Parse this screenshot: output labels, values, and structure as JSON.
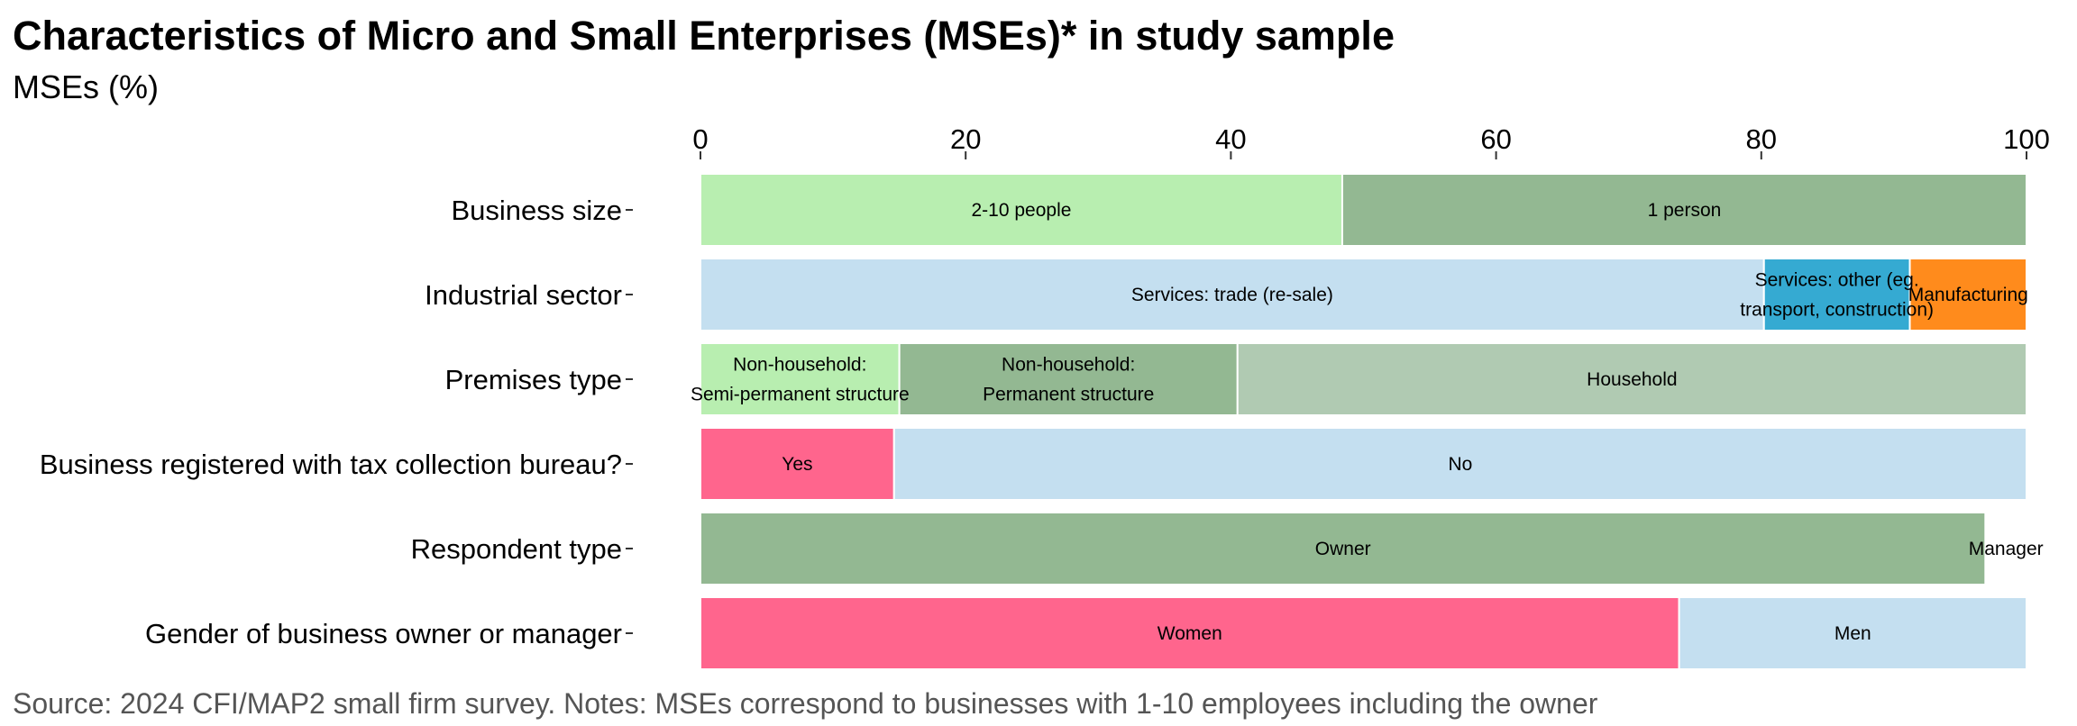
{
  "chart_data": {
    "type": "bar",
    "orientation": "horizontal",
    "stacked": true,
    "title": "Characteristics of Micro and Small Enterprises (MSEs)* in study sample",
    "subtitle": "MSEs (%)",
    "caption": "Source: 2024 CFI/MAP2 small firm survey. Notes: MSEs correspond to businesses with 1-10 employees including the owner",
    "xlim": [
      0,
      100
    ],
    "x_ticks": [
      0,
      20,
      40,
      60,
      80,
      100
    ],
    "x_axis_position": "top",
    "grid": false,
    "legend": "none",
    "rows": [
      {
        "category": "Business size",
        "segments": [
          {
            "label": "2-10 people",
            "value": 48.4,
            "color": "#b8eeb0"
          },
          {
            "label": "1 person",
            "value": 51.6,
            "color": "#93b892"
          }
        ]
      },
      {
        "category": "Industrial sector",
        "segments": [
          {
            "label": "Services: trade (re-sale)",
            "value": 80.2,
            "color": "#c4dff0"
          },
          {
            "label": "Services: other (eg. transport, construction)",
            "value": 11.0,
            "color": "#35aad2"
          },
          {
            "label": "Manufacturing",
            "value": 8.8,
            "color": "#ff8b1c"
          }
        ]
      },
      {
        "category": "Premises type",
        "segments": [
          {
            "label": "Non-household: Semi-permanent structure",
            "value": 15.0,
            "color": "#b8eeb0"
          },
          {
            "label": "Non-household: Permanent structure",
            "value": 25.5,
            "color": "#93b892"
          },
          {
            "label": "Household",
            "value": 59.5,
            "color": "#b0cab2"
          }
        ]
      },
      {
        "category": "Business registered with tax collection bureau?",
        "segments": [
          {
            "label": "Yes",
            "value": 14.6,
            "color": "#ff658d"
          },
          {
            "label": "No",
            "value": 85.4,
            "color": "#c4dff0"
          }
        ]
      },
      {
        "category": "Respondent type",
        "segments": [
          {
            "label": "Owner",
            "value": 96.9,
            "color": "#93b892"
          },
          {
            "label": "Manager",
            "value": 3.1,
            "color": "#ffffff"
          }
        ]
      },
      {
        "category": "Gender of business owner or manager",
        "segments": [
          {
            "label": "Women",
            "value": 73.8,
            "color": "#ff658d"
          },
          {
            "label": "Men",
            "value": 26.2,
            "color": "#c4dff0"
          }
        ]
      }
    ]
  }
}
